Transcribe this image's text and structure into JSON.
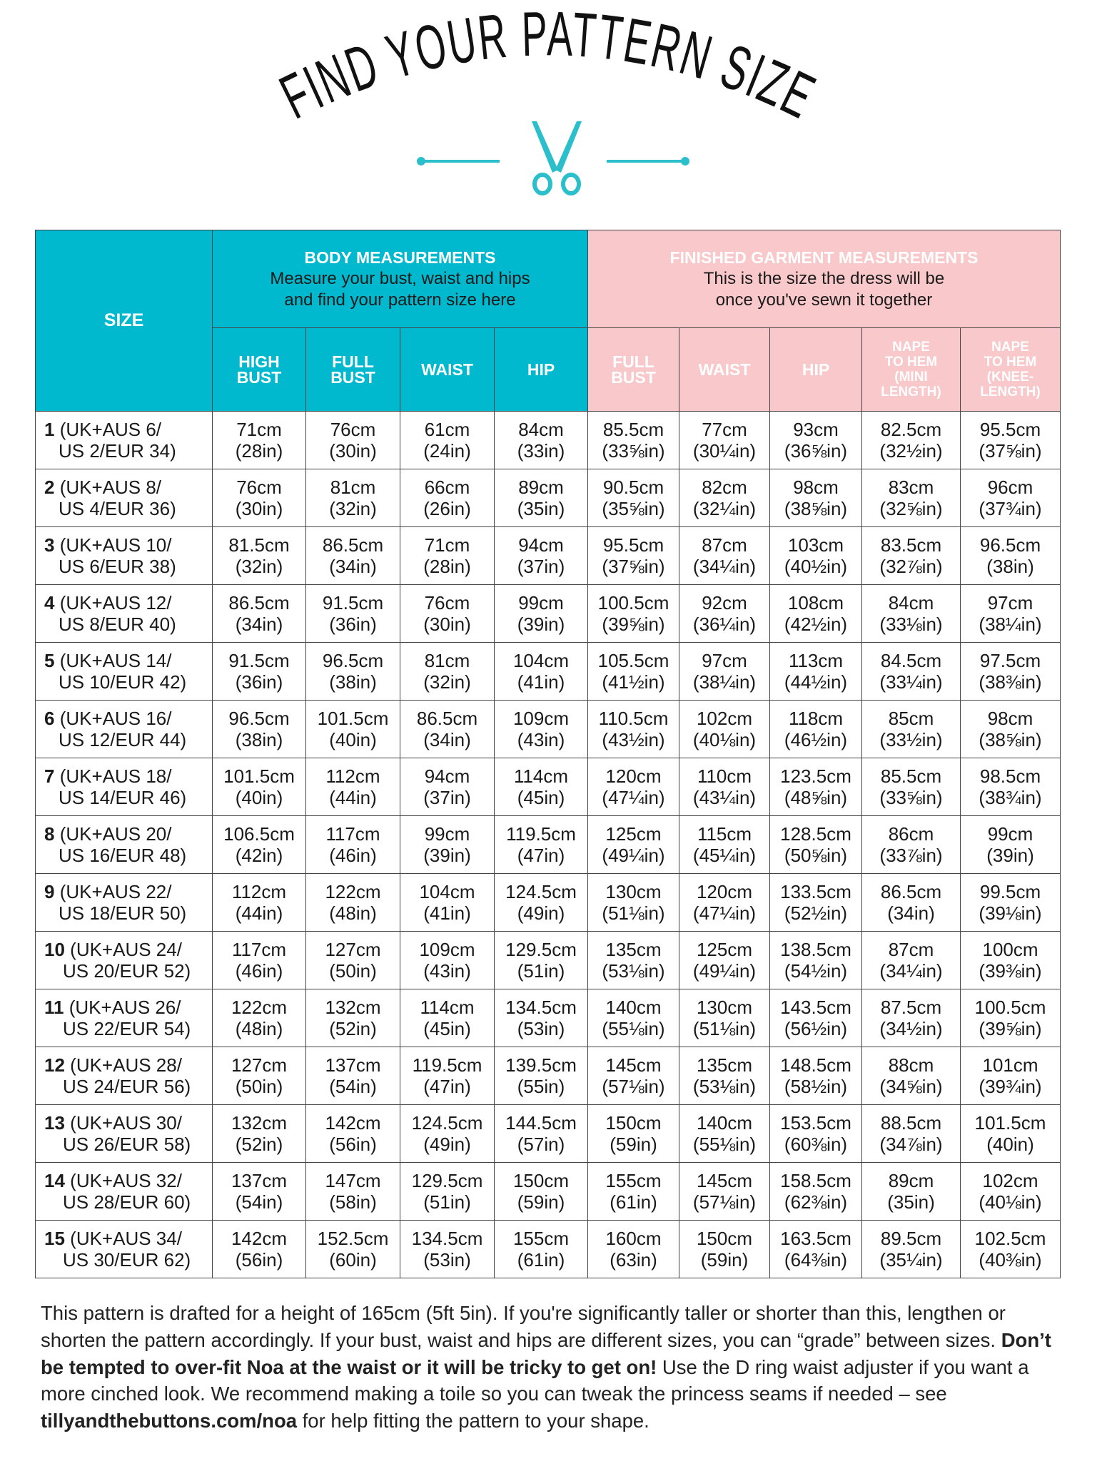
{
  "title": "FIND YOUR PATTERN SIZE",
  "colors": {
    "teal": "#00b9cf",
    "pink": "#f9c8cb",
    "scissors": "#2bbfcc"
  },
  "icons": {
    "divider": "scissors-icon"
  },
  "table": {
    "size_header": "SIZE",
    "body_group": {
      "title": "BODY MEASUREMENTS",
      "line1": "Measure your bust, waist and hips",
      "line2": "and find your pattern size here"
    },
    "garment_group": {
      "title": "FINISHED GARMENT MEASUREMENTS",
      "line1": "This is the size the dress will be",
      "line2": "once you've sewn it together"
    },
    "columns": [
      [
        "HIGH",
        "BUST"
      ],
      [
        "FULL",
        "BUST"
      ],
      [
        "WAIST"
      ],
      [
        "HIP"
      ],
      [
        "FULL",
        "BUST"
      ],
      [
        "WAIST"
      ],
      [
        "HIP"
      ],
      [
        "NAPE",
        "TO HEM",
        "(MINI",
        "LENGTH)"
      ],
      [
        "NAPE",
        "TO HEM",
        "(KNEE-",
        "LENGTH)"
      ]
    ],
    "rows": [
      {
        "num": "1",
        "l1": "(UK+AUS 6/",
        "l2": "US 2/EUR 34)",
        "cells": [
          [
            "71cm",
            "(28in)"
          ],
          [
            "76cm",
            "(30in)"
          ],
          [
            "61cm",
            "(24in)"
          ],
          [
            "84cm",
            "(33in)"
          ],
          [
            "85.5cm",
            "(33⅝in)"
          ],
          [
            "77cm",
            "(30¼in)"
          ],
          [
            "93cm",
            "(36⅝in)"
          ],
          [
            "82.5cm",
            "(32½in)"
          ],
          [
            "95.5cm",
            "(37⅝in)"
          ]
        ]
      },
      {
        "num": "2",
        "l1": "(UK+AUS 8/",
        "l2": "US 4/EUR 36)",
        "cells": [
          [
            "76cm",
            "(30in)"
          ],
          [
            "81cm",
            "(32in)"
          ],
          [
            "66cm",
            "(26in)"
          ],
          [
            "89cm",
            "(35in)"
          ],
          [
            "90.5cm",
            "(35⅝in)"
          ],
          [
            "82cm",
            "(32¼in)"
          ],
          [
            "98cm",
            "(38⅝in)"
          ],
          [
            "83cm",
            "(32⅝in)"
          ],
          [
            "96cm",
            "(37¾in)"
          ]
        ]
      },
      {
        "num": "3",
        "l1": "(UK+AUS 10/",
        "l2": "US 6/EUR 38)",
        "cells": [
          [
            "81.5cm",
            "(32in)"
          ],
          [
            "86.5cm",
            "(34in)"
          ],
          [
            "71cm",
            "(28in)"
          ],
          [
            "94cm",
            "(37in)"
          ],
          [
            "95.5cm",
            "(37⅝in)"
          ],
          [
            "87cm",
            "(34¼in)"
          ],
          [
            "103cm",
            "(40½in)"
          ],
          [
            "83.5cm",
            "(32⅞in)"
          ],
          [
            "96.5cm",
            "(38in)"
          ]
        ]
      },
      {
        "num": "4",
        "l1": "(UK+AUS 12/",
        "l2": "US 8/EUR 40)",
        "cells": [
          [
            "86.5cm",
            "(34in)"
          ],
          [
            "91.5cm",
            "(36in)"
          ],
          [
            "76cm",
            "(30in)"
          ],
          [
            "99cm",
            "(39in)"
          ],
          [
            "100.5cm",
            "(39⅝in)"
          ],
          [
            "92cm",
            "(36¼in)"
          ],
          [
            "108cm",
            "(42½in)"
          ],
          [
            "84cm",
            "(33⅛in)"
          ],
          [
            "97cm",
            "(38¼in)"
          ]
        ]
      },
      {
        "num": "5",
        "l1": "(UK+AUS 14/",
        "l2": "US 10/EUR 42)",
        "cells": [
          [
            "91.5cm",
            "(36in)"
          ],
          [
            "96.5cm",
            "(38in)"
          ],
          [
            "81cm",
            "(32in)"
          ],
          [
            "104cm",
            "(41in)"
          ],
          [
            "105.5cm",
            "(41½in)"
          ],
          [
            "97cm",
            "(38¼in)"
          ],
          [
            "113cm",
            "(44½in)"
          ],
          [
            "84.5cm",
            "(33¼in)"
          ],
          [
            "97.5cm",
            "(38⅜in)"
          ]
        ]
      },
      {
        "num": "6",
        "l1": "(UK+AUS 16/",
        "l2": "US 12/EUR 44)",
        "cells": [
          [
            "96.5cm",
            "(38in)"
          ],
          [
            "101.5cm",
            "(40in)"
          ],
          [
            "86.5cm",
            "(34in)"
          ],
          [
            "109cm",
            "(43in)"
          ],
          [
            "110.5cm",
            "(43½in)"
          ],
          [
            "102cm",
            "(40⅛in)"
          ],
          [
            "118cm",
            "(46½in)"
          ],
          [
            "85cm",
            "(33½in)"
          ],
          [
            "98cm",
            "(38⅝in)"
          ]
        ]
      },
      {
        "num": "7",
        "l1": "(UK+AUS 18/",
        "l2": "US 14/EUR 46)",
        "cells": [
          [
            "101.5cm",
            "(40in)"
          ],
          [
            "112cm",
            "(44in)"
          ],
          [
            "94cm",
            "(37in)"
          ],
          [
            "114cm",
            "(45in)"
          ],
          [
            "120cm",
            "(47¼in)"
          ],
          [
            "110cm",
            "(43¼in)"
          ],
          [
            "123.5cm",
            "(48⅝in)"
          ],
          [
            "85.5cm",
            "(33⅝in)"
          ],
          [
            "98.5cm",
            "(38¾in)"
          ]
        ]
      },
      {
        "num": "8",
        "l1": "(UK+AUS 20/",
        "l2": "US 16/EUR 48)",
        "cells": [
          [
            "106.5cm",
            "(42in)"
          ],
          [
            "117cm",
            "(46in)"
          ],
          [
            "99cm",
            "(39in)"
          ],
          [
            "119.5cm",
            "(47in)"
          ],
          [
            "125cm",
            "(49¼in)"
          ],
          [
            "115cm",
            "(45¼in)"
          ],
          [
            "128.5cm",
            "(50⅝in)"
          ],
          [
            "86cm",
            "(33⅞in)"
          ],
          [
            "99cm",
            "(39in)"
          ]
        ]
      },
      {
        "num": "9",
        "l1": "(UK+AUS 22/",
        "l2": "US 18/EUR 50)",
        "cells": [
          [
            "112cm",
            "(44in)"
          ],
          [
            "122cm",
            "(48in)"
          ],
          [
            "104cm",
            "(41in)"
          ],
          [
            "124.5cm",
            "(49in)"
          ],
          [
            "130cm",
            "(51⅛in)"
          ],
          [
            "120cm",
            "(47¼in)"
          ],
          [
            "133.5cm",
            "(52½in)"
          ],
          [
            "86.5cm",
            "(34in)"
          ],
          [
            "99.5cm",
            "(39⅛in)"
          ]
        ]
      },
      {
        "num": "10",
        "l1": "(UK+AUS 24/",
        "l2": "US 20/EUR 52)",
        "cells": [
          [
            "117cm",
            "(46in)"
          ],
          [
            "127cm",
            "(50in)"
          ],
          [
            "109cm",
            "(43in)"
          ],
          [
            "129.5cm",
            "(51in)"
          ],
          [
            "135cm",
            "(53⅛in)"
          ],
          [
            "125cm",
            "(49¼in)"
          ],
          [
            "138.5cm",
            "(54½in)"
          ],
          [
            "87cm",
            "(34¼in)"
          ],
          [
            "100cm",
            "(39⅜in)"
          ]
        ]
      },
      {
        "num": "11",
        "l1": "(UK+AUS 26/",
        "l2": "US 22/EUR 54)",
        "cells": [
          [
            "122cm",
            "(48in)"
          ],
          [
            "132cm",
            "(52in)"
          ],
          [
            "114cm",
            "(45in)"
          ],
          [
            "134.5cm",
            "(53in)"
          ],
          [
            "140cm",
            "(55⅛in)"
          ],
          [
            "130cm",
            "(51⅛in)"
          ],
          [
            "143.5cm",
            "(56½in)"
          ],
          [
            "87.5cm",
            "(34½in)"
          ],
          [
            "100.5cm",
            "(39⅝in)"
          ]
        ]
      },
      {
        "num": "12",
        "l1": "(UK+AUS 28/",
        "l2": "US 24/EUR 56)",
        "cells": [
          [
            "127cm",
            "(50in)"
          ],
          [
            "137cm",
            "(54in)"
          ],
          [
            "119.5cm",
            "(47in)"
          ],
          [
            "139.5cm",
            "(55in)"
          ],
          [
            "145cm",
            "(57⅛in)"
          ],
          [
            "135cm",
            "(53⅛in)"
          ],
          [
            "148.5cm",
            "(58½in)"
          ],
          [
            "88cm",
            "(34⅝in)"
          ],
          [
            "101cm",
            "(39¾in)"
          ]
        ]
      },
      {
        "num": "13",
        "l1": "(UK+AUS 30/",
        "l2": "US 26/EUR 58)",
        "cells": [
          [
            "132cm",
            "(52in)"
          ],
          [
            "142cm",
            "(56in)"
          ],
          [
            "124.5cm",
            "(49in)"
          ],
          [
            "144.5cm",
            "(57in)"
          ],
          [
            "150cm",
            "(59in)"
          ],
          [
            "140cm",
            "(55⅛in)"
          ],
          [
            "153.5cm",
            "(60⅜in)"
          ],
          [
            "88.5cm",
            "(34⅞in)"
          ],
          [
            "101.5cm",
            "(40in)"
          ]
        ]
      },
      {
        "num": "14",
        "l1": "(UK+AUS 32/",
        "l2": "US 28/EUR 60)",
        "cells": [
          [
            "137cm",
            "(54in)"
          ],
          [
            "147cm",
            "(58in)"
          ],
          [
            "129.5cm",
            "(51in)"
          ],
          [
            "150cm",
            "(59in)"
          ],
          [
            "155cm",
            "(61in)"
          ],
          [
            "145cm",
            "(57⅛in)"
          ],
          [
            "158.5cm",
            "(62⅜in)"
          ],
          [
            "89cm",
            "(35in)"
          ],
          [
            "102cm",
            "(40⅛in)"
          ]
        ]
      },
      {
        "num": "15",
        "l1": "(UK+AUS 34/",
        "l2": "US 30/EUR 62)",
        "cells": [
          [
            "142cm",
            "(56in)"
          ],
          [
            "152.5cm",
            "(60in)"
          ],
          [
            "134.5cm",
            "(53in)"
          ],
          [
            "155cm",
            "(61in)"
          ],
          [
            "160cm",
            "(63in)"
          ],
          [
            "150cm",
            "(59in)"
          ],
          [
            "163.5cm",
            "(64⅜in)"
          ],
          [
            "89.5cm",
            "(35¼in)"
          ],
          [
            "102.5cm",
            "(40⅜in)"
          ]
        ]
      }
    ]
  },
  "footer": {
    "part1": "This pattern is drafted for a height of 165cm (5ft 5in). If you're significantly taller or shorter than this, lengthen or shorten the pattern accordingly. If your bust, waist and hips are different sizes, you can “grade” between sizes. ",
    "bold1": "Don’t be tempted to over-fit Noa at the waist or it will be tricky to get on!",
    "part2": " Use the D ring waist adjuster if you want a more cinched look. We recommend making a toile so you can tweak the princess seams if needed – see ",
    "link": "tillyandthebuttons.com/noa",
    "part3": " for help fitting the pattern to your shape."
  }
}
